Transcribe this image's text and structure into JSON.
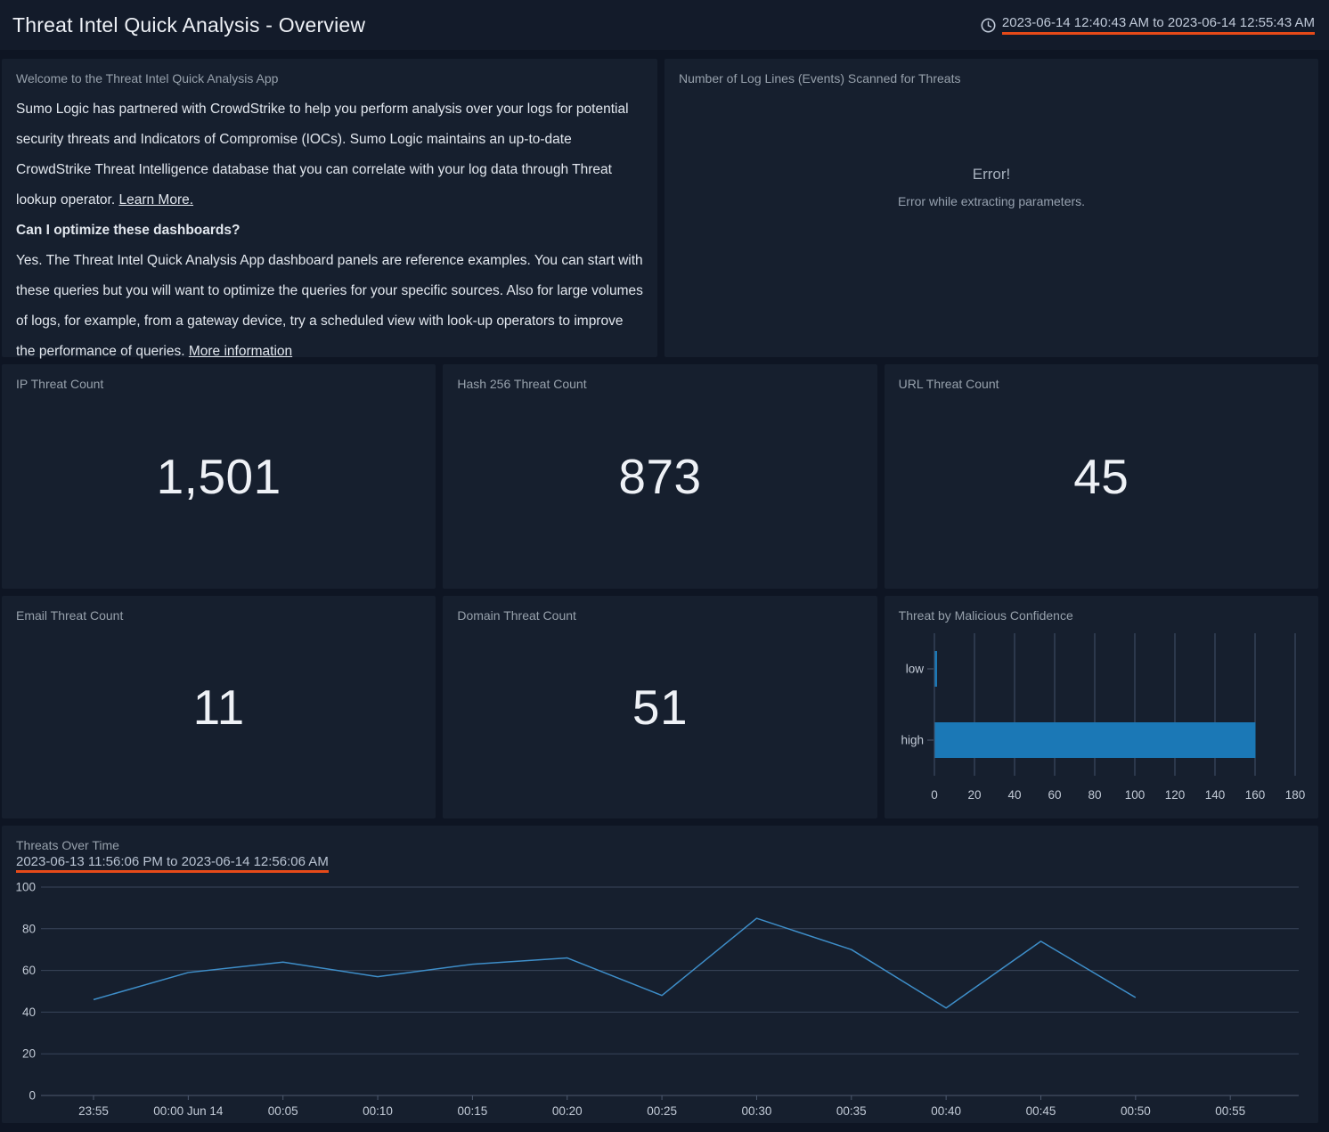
{
  "header": {
    "title": "Threat Intel Quick Analysis - Overview",
    "time_range": "2023-06-14 12:40:43 AM to 2023-06-14 12:55:43 AM",
    "clock_icon": "clock",
    "underline_color": "#e64a19"
  },
  "welcome": {
    "title": "Welcome to the Threat Intel Quick Analysis App",
    "p1": "Sumo Logic has partnered with CrowdStrike to help you perform analysis over your logs for potential security threats and Indicators of Compromise (IOCs). Sumo Logic maintains an up-to-date CrowdStrike Threat Intelligence database that you can correlate with your log data through Threat lookup operator. ",
    "p1_link": "Learn More.",
    "question": "Can I optimize these dashboards?",
    "p2": "Yes. The Threat Intel Quick Analysis App dashboard panels are reference examples. You can start with these queries but you will want to optimize the queries for your specific sources. Also for large volumes of logs, for example, from a gateway device, try a scheduled view with look-up operators to improve the performance of queries. ",
    "p2_link": "More information"
  },
  "error_panel": {
    "title": "Number of Log Lines (Events) Scanned for Threats",
    "error_title": "Error!",
    "error_message": "Error while extracting parameters."
  },
  "counts": [
    {
      "title": "IP Threat Count",
      "value": "1,501"
    },
    {
      "title": "Hash 256 Threat Count",
      "value": "873"
    },
    {
      "title": "URL Threat Count",
      "value": "45"
    },
    {
      "title": "Email Threat Count",
      "value": "11"
    },
    {
      "title": "Domain Threat Count",
      "value": "51"
    }
  ],
  "chart_data": [
    {
      "id": "malicious-confidence",
      "type": "bar",
      "orientation": "horizontal",
      "title": "Threat by Malicious Confidence",
      "categories": [
        "low",
        "high"
      ],
      "values": [
        1,
        160
      ],
      "xlim": [
        0,
        180
      ],
      "xticks": [
        0,
        20,
        40,
        60,
        80,
        100,
        120,
        140,
        160,
        180
      ],
      "bar_color": "#1b78b6",
      "grid": true,
      "legend": "none"
    },
    {
      "id": "threats-over-time",
      "type": "line",
      "title": "Threats Over Time",
      "subtitle": "2023-06-13 11:56:06 PM to 2023-06-14 12:56:06 AM",
      "x_labels": [
        "23:55",
        "00:00 Jun 14",
        "00:05",
        "00:10",
        "00:15",
        "00:20",
        "00:25",
        "00:30",
        "00:35",
        "00:40",
        "00:45",
        "00:50",
        "00:55"
      ],
      "values": [
        46,
        59,
        64,
        57,
        63,
        66,
        48,
        85,
        70,
        42,
        74,
        47
      ],
      "ylim": [
        0,
        100
      ],
      "yticks": [
        0,
        20,
        40,
        60,
        80,
        100
      ],
      "line_color": "#3e8ec9",
      "grid": true,
      "legend": "none"
    }
  ],
  "chart_style": {
    "grid_color": "#39455a",
    "bar_grid_color": "#42506b",
    "axis_color": "#4d596e",
    "tick_label_color": "#c3cbd7"
  }
}
